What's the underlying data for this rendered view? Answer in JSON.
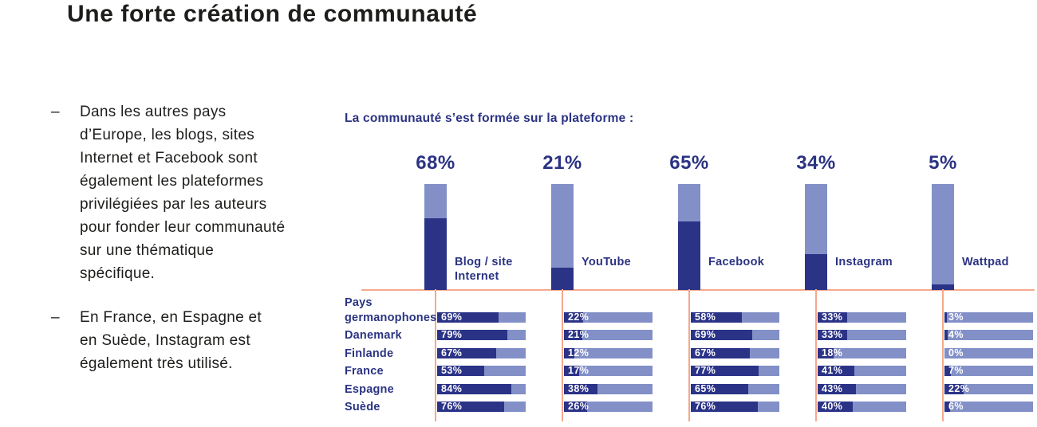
{
  "title": "Une forte création de communauté",
  "bullet_dash": "–",
  "bullets": [
    "Dans les autres pays\nd’Europe, les blogs, sites\nInternet et Facebook sont\négalement les plateformes\nprivilégiées par les auteurs\npour fonder leur communauté\nsur une thématique\nspécifique.",
    "En France, en Espagne et\nen Suède, Instagram est\négalement très utilisé."
  ],
  "chart_data": {
    "type": "bar",
    "title": "La communauté s’est formée sur la plateforme :",
    "unit": "%",
    "ylim": [
      0,
      100
    ],
    "grid": false,
    "categories": [
      "Blog / site Internet",
      "YouTube",
      "Facebook",
      "Instagram",
      "Wattpad"
    ],
    "totals": [
      68,
      21,
      65,
      34,
      5
    ],
    "countries": [
      "Pays\ngermanophones",
      "Danemark",
      "Finlande",
      "France",
      "Espagne",
      "Suède"
    ],
    "series": [
      {
        "name": "Blog / site Internet",
        "label": "Blog / site\nInternet",
        "total": 68,
        "values": [
          69,
          79,
          67,
          53,
          84,
          76
        ]
      },
      {
        "name": "YouTube",
        "label": "YouTube",
        "total": 21,
        "values": [
          22,
          21,
          12,
          17,
          38,
          26
        ]
      },
      {
        "name": "Facebook",
        "label": "Facebook",
        "total": 65,
        "values": [
          58,
          69,
          67,
          77,
          65,
          76
        ]
      },
      {
        "name": "Instagram",
        "label": "Instagram",
        "total": 34,
        "values": [
          33,
          33,
          18,
          41,
          43,
          40
        ]
      },
      {
        "name": "Wattpad",
        "label": "Wattpad",
        "total": 5,
        "values": [
          3,
          4,
          0,
          7,
          22,
          6
        ]
      }
    ],
    "colors": {
      "dark_bar": "#2b3387",
      "light_bar": "#8390c7",
      "axis_line": "#f5a88e",
      "navy_text": "#2b3383",
      "ink_text": "#1d1d1b",
      "value_text": "#ffffff",
      "background": "#ffffff"
    }
  }
}
